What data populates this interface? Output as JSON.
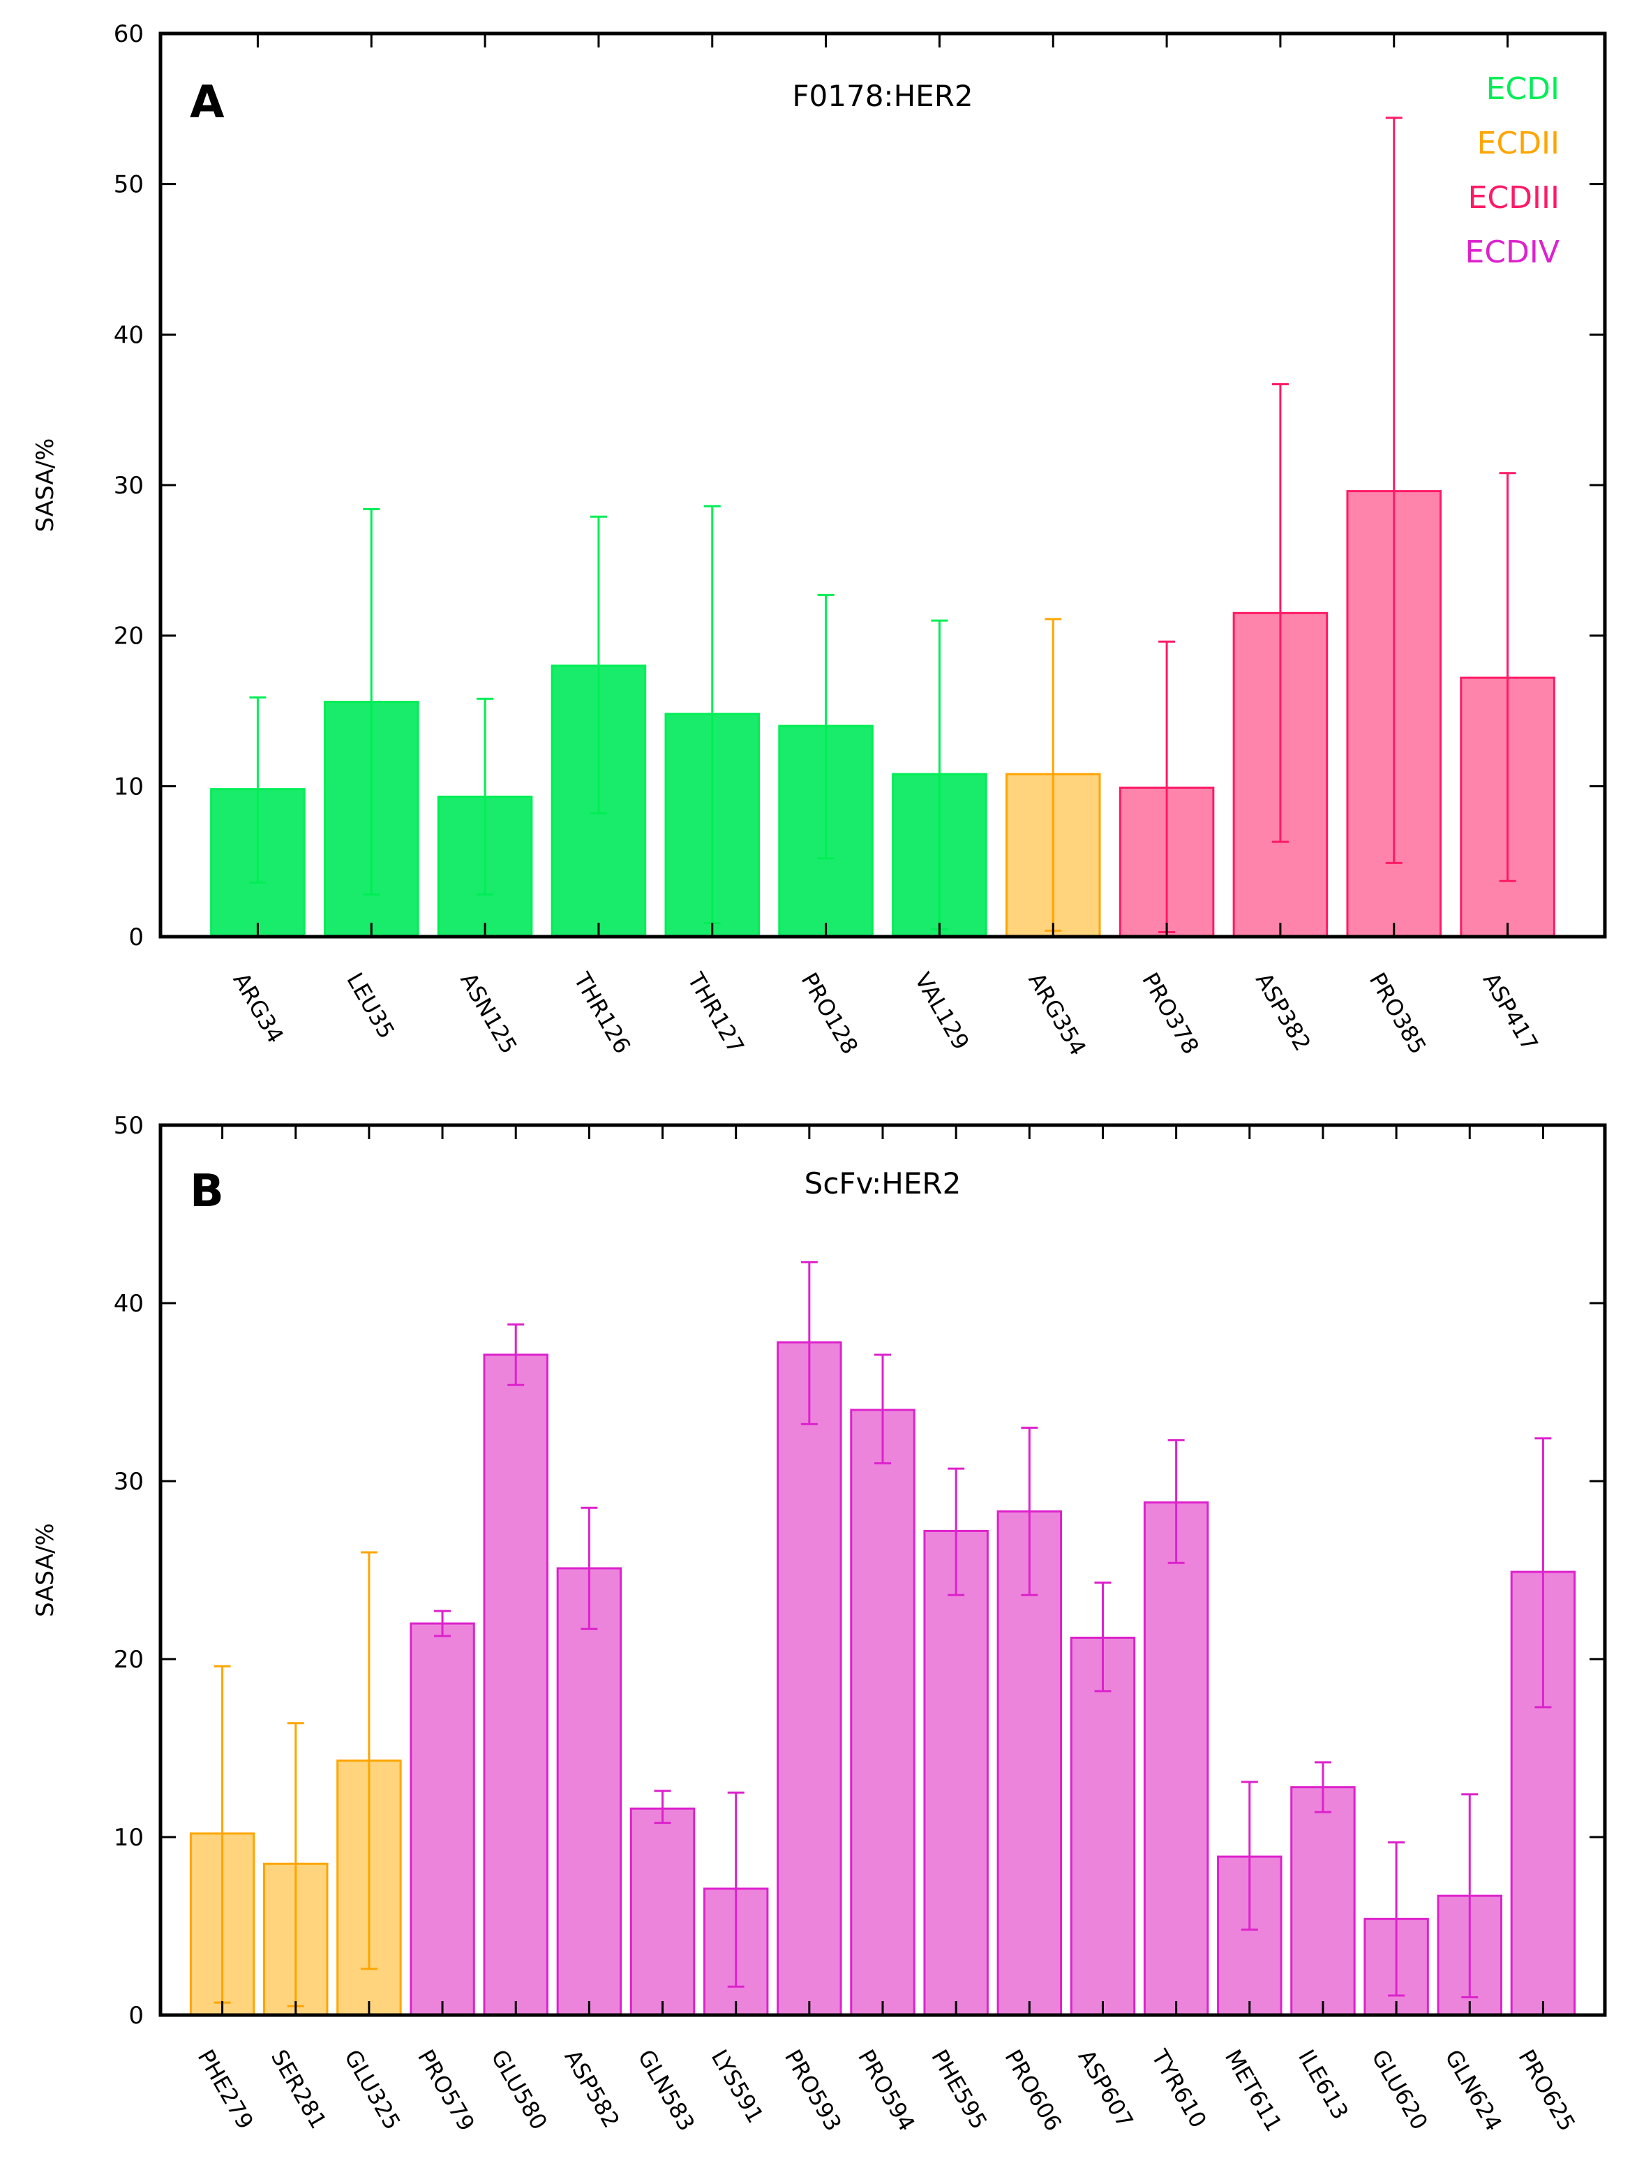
{
  "colors": {
    "ECDI": "#00ee55",
    "ECDII": "#ffa500",
    "ECDIII": "#ff1a66",
    "ECDIV": "#dd22cc"
  },
  "fills": {
    "ECDI": "#19ec6a",
    "ECDII": "#ffd47c",
    "ECDIII": "#ff84ac",
    "ECDIV": "#ec84dc"
  },
  "legend": [
    "ECDI",
    "ECDII",
    "ECDIII",
    "ECDIV"
  ],
  "chart_data": [
    {
      "type": "bar",
      "panel": "A",
      "title": "F0178:HER2",
      "ylabel": "SASA/%",
      "xlabel": "",
      "ylim": [
        0,
        60
      ],
      "yticks": [
        0,
        10,
        20,
        30,
        40,
        50,
        60
      ],
      "categories": [
        "ARG34",
        "LEU35",
        "ASN125",
        "THR126",
        "THR127",
        "PRO128",
        "VAL129",
        "ARG354",
        "PRO378",
        "ASP382",
        "PRO385",
        "ASP417"
      ],
      "values": [
        9.8,
        15.6,
        9.3,
        18.0,
        14.8,
        14.0,
        10.8,
        10.8,
        9.9,
        21.5,
        29.6,
        17.2
      ],
      "error_low": [
        3.6,
        2.8,
        2.8,
        8.2,
        0.9,
        5.2,
        0.5,
        0.4,
        0.3,
        6.3,
        4.9,
        3.7
      ],
      "error_high": [
        15.9,
        28.4,
        15.8,
        27.9,
        28.6,
        22.7,
        21.0,
        21.1,
        19.6,
        36.7,
        54.4,
        30.8
      ],
      "domains": [
        "ECDI",
        "ECDI",
        "ECDI",
        "ECDI",
        "ECDI",
        "ECDI",
        "ECDI",
        "ECDII",
        "ECDIII",
        "ECDIII",
        "ECDIII",
        "ECDIII"
      ],
      "grid": false,
      "legend_position": "top-right"
    },
    {
      "type": "bar",
      "panel": "B",
      "title": "ScFv:HER2",
      "ylabel": "SASA/%",
      "xlabel": "",
      "ylim": [
        0,
        50
      ],
      "yticks": [
        0,
        10,
        20,
        30,
        40,
        50
      ],
      "categories": [
        "PHE279",
        "SER281",
        "GLU325",
        "PRO579",
        "GLU580",
        "ASP582",
        "GLN583",
        "LYS591",
        "PRO593",
        "PRO594",
        "PHE595",
        "PRO606",
        "ASP607",
        "TYR610",
        "MET611",
        "ILE613",
        "GLU620",
        "GLN624",
        "PRO625"
      ],
      "values": [
        10.2,
        8.5,
        14.3,
        22.0,
        37.1,
        25.1,
        11.6,
        7.1,
        37.8,
        34.0,
        27.2,
        28.3,
        21.2,
        28.8,
        8.9,
        12.8,
        5.4,
        6.7,
        24.9
      ],
      "error_low": [
        0.7,
        0.5,
        2.6,
        21.3,
        35.4,
        21.7,
        10.8,
        1.6,
        33.2,
        31.0,
        23.6,
        23.6,
        18.2,
        25.4,
        4.8,
        11.4,
        1.1,
        1.0,
        17.3
      ],
      "error_high": [
        19.6,
        16.4,
        26.0,
        22.7,
        38.8,
        28.5,
        12.6,
        12.5,
        42.3,
        37.1,
        30.7,
        33.0,
        24.3,
        32.3,
        13.1,
        14.2,
        9.7,
        12.4,
        32.4
      ],
      "domains": [
        "ECDII",
        "ECDII",
        "ECDII",
        "ECDIV",
        "ECDIV",
        "ECDIV",
        "ECDIV",
        "ECDIV",
        "ECDIV",
        "ECDIV",
        "ECDIV",
        "ECDIV",
        "ECDIV",
        "ECDIV",
        "ECDIV",
        "ECDIV",
        "ECDIV",
        "ECDIV",
        "ECDIV"
      ],
      "grid": false,
      "legend_position": "none"
    }
  ]
}
